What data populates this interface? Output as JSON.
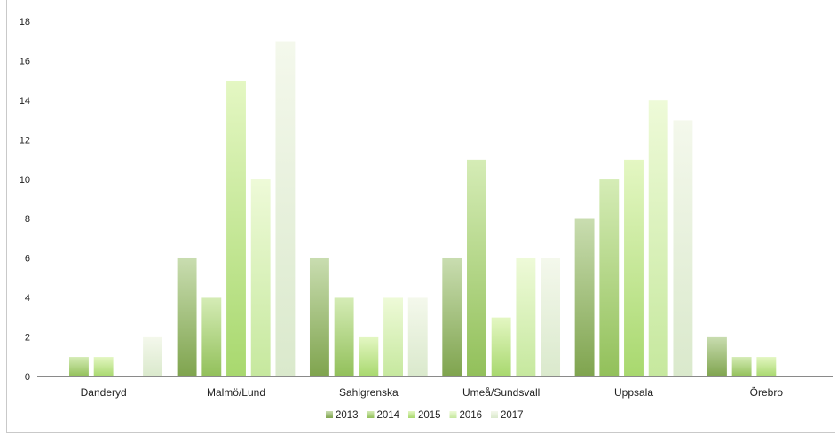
{
  "chart_data": {
    "type": "bar",
    "categories": [
      "Danderyd",
      "Malmö/Lund",
      "Sahlgrenska",
      "Umeå/Sundsvall",
      "Uppsala",
      "Örebro"
    ],
    "series": [
      {
        "name": "2013",
        "values": [
          0,
          6,
          6,
          6,
          8,
          2
        ],
        "color_top": "#c9ddb0",
        "color_bottom": "#7fa44e"
      },
      {
        "name": "2014",
        "values": [
          1,
          4,
          4,
          11,
          10,
          1
        ],
        "color_top": "#d5ecb6",
        "color_bottom": "#92c05a"
      },
      {
        "name": "2015",
        "values": [
          1,
          15,
          2,
          3,
          11,
          1
        ],
        "color_top": "#e4f7c3",
        "color_bottom": "#a8d86e"
      },
      {
        "name": "2016",
        "values": [
          0,
          10,
          4,
          6,
          14,
          0
        ],
        "color_top": "#eefad8",
        "color_bottom": "#c6e89e"
      },
      {
        "name": "2017",
        "values": [
          2,
          17,
          4,
          6,
          13,
          0
        ],
        "color_top": "#f4f8ec",
        "color_bottom": "#dae9cc"
      }
    ],
    "yticks": [
      "0",
      "2",
      "4",
      "6",
      "8",
      "10",
      "12",
      "14",
      "16",
      "18"
    ],
    "ylim": [
      0,
      18
    ],
    "legend_position": "bottom"
  }
}
